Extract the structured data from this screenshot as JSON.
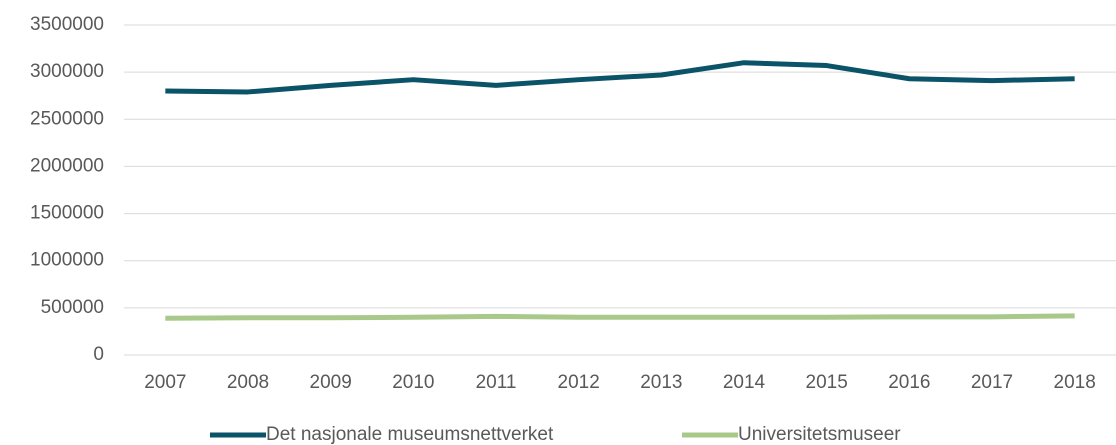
{
  "chart_data": {
    "type": "line",
    "categories": [
      "2007",
      "2008",
      "2009",
      "2010",
      "2011",
      "2012",
      "2013",
      "2014",
      "2015",
      "2016",
      "2017",
      "2018"
    ],
    "series": [
      {
        "name": "Det nasjonale museumsnettverket",
        "color": "#0b5368",
        "values": [
          2800000,
          2790000,
          2860000,
          2920000,
          2860000,
          2920000,
          2970000,
          3100000,
          3070000,
          2930000,
          2910000,
          2930000
        ]
      },
      {
        "name": "Universitetsmuseer",
        "color": "#a9c98a",
        "values": [
          390000,
          395000,
          395000,
          400000,
          410000,
          400000,
          400000,
          400000,
          400000,
          405000,
          405000,
          415000
        ]
      }
    ],
    "ylim": [
      0,
      3500000
    ],
    "yticks": [
      0,
      500000,
      1000000,
      1500000,
      2000000,
      2500000,
      3000000,
      3500000
    ],
    "grid": true,
    "legend": "bottom"
  }
}
